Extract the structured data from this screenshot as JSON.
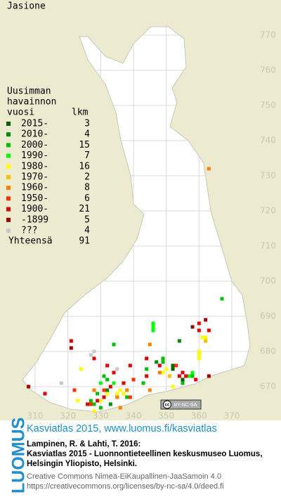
{
  "title": "Jasione",
  "legend": {
    "heading": [
      "Uusimman",
      "havainnon",
      "vuosi"
    ],
    "count_heading": "lkm",
    "items": [
      {
        "label": "2015-",
        "count": 3,
        "color": "#006400",
        "cells": [
          [
            352,
            676
          ],
          [
            352,
            675
          ],
          [
            355,
            672
          ]
        ]
      },
      {
        "label": "2010-",
        "count": 4,
        "color": "#008c00",
        "cells": [
          [
            354,
            683
          ],
          [
            347,
            677
          ],
          [
            332,
            669
          ],
          [
            333,
            665
          ]
        ]
      },
      {
        "label": "2000-",
        "count": 15,
        "color": "#00c000",
        "cells": [
          [
            367,
            695
          ],
          [
            334,
            682
          ],
          [
            349,
            678
          ],
          [
            349,
            677
          ],
          [
            344,
            675
          ],
          [
            331,
            673
          ],
          [
            332,
            672
          ],
          [
            358,
            673
          ],
          [
            328,
            665
          ],
          [
            338,
            667
          ],
          [
            329,
            668
          ],
          [
            330,
            664
          ],
          [
            343,
            671
          ],
          [
            355,
            671
          ],
          [
            327,
            666
          ]
        ]
      },
      {
        "label": "1990-",
        "count": 7,
        "color": "#00ff00",
        "cells": [
          [
            346,
            688
          ],
          [
            346,
            687
          ],
          [
            346,
            686
          ],
          [
            358,
            674
          ],
          [
            357,
            673
          ],
          [
            330,
            671
          ],
          [
            334,
            671
          ]
        ]
      },
      {
        "label": "1980-",
        "count": 16,
        "color": "#ffff00",
        "cells": [
          [
            361,
            684
          ],
          [
            362,
            684
          ],
          [
            360,
            680
          ],
          [
            360,
            679
          ],
          [
            360,
            678
          ],
          [
            324,
            675
          ],
          [
            350,
            675
          ],
          [
            352,
            670
          ],
          [
            337,
            668
          ],
          [
            336,
            669
          ],
          [
            335,
            668
          ],
          [
            330,
            666
          ],
          [
            332,
            668
          ],
          [
            328,
            663
          ],
          [
            349,
            674
          ],
          [
            323,
            666
          ]
        ]
      },
      {
        "label": "1970-",
        "count": 2,
        "color": "#ffc000",
        "cells": [
          [
            351,
            673
          ],
          [
            362,
            683
          ]
        ]
      },
      {
        "label": "1960-",
        "count": 8,
        "color": "#ff8000",
        "cells": [
          [
            363,
            732
          ],
          [
            345,
            682
          ],
          [
            345,
            669
          ],
          [
            335,
            667
          ],
          [
            338,
            669
          ],
          [
            328,
            669
          ],
          [
            348,
            674
          ],
          [
            336,
            664
          ]
        ]
      },
      {
        "label": "1950-",
        "count": 6,
        "color": "#ff3000",
        "cells": [
          [
            331,
            669
          ],
          [
            327,
            665
          ],
          [
            353,
            676
          ],
          [
            339,
            667
          ],
          [
            340,
            672
          ],
          [
            322,
            669
          ]
        ]
      },
      {
        "label": "1900-",
        "count": 21,
        "color": "#e00000",
        "cells": [
          [
            360,
            688
          ],
          [
            360,
            686
          ],
          [
            363,
            686
          ],
          [
            321,
            683
          ],
          [
            328,
            678
          ],
          [
            332,
            676
          ],
          [
            354,
            673
          ],
          [
            355,
            674
          ],
          [
            356,
            673
          ],
          [
            359,
            672
          ],
          [
            334,
            674
          ],
          [
            344,
            678
          ],
          [
            348,
            676
          ],
          [
            326,
            665
          ],
          [
            329,
            666
          ],
          [
            331,
            667
          ],
          [
            333,
            670
          ],
          [
            337,
            671
          ],
          [
            344,
            673
          ],
          [
            339,
            676
          ],
          [
            313,
            668
          ]
        ]
      },
      {
        "label": "-1899",
        "count": 5,
        "color": "#a00000",
        "cells": [
          [
            362,
            689
          ],
          [
            358,
            687
          ],
          [
            321,
            681
          ],
          [
            308,
            670
          ],
          [
            363,
            673
          ]
        ]
      },
      {
        "label": "???",
        "count": 4,
        "color": "#c8c8c8",
        "cells": [
          [
            328,
            680
          ],
          [
            327,
            679
          ],
          [
            318,
            671
          ],
          [
            335,
            675
          ]
        ]
      }
    ],
    "total_label": "Yhteensä",
    "total": 91
  },
  "xticks": [
    310,
    320,
    330,
    340,
    350,
    360,
    370
  ],
  "yticks": [
    670,
    680,
    690,
    700,
    710,
    720,
    730,
    740,
    750,
    760,
    770
  ],
  "license": {
    "logo": "cc",
    "terms": "BY-NC-SA"
  },
  "footer": {
    "brand": "LUOMUS",
    "headline": "Kasviatlas 2015, www.luomus.fi/kasviatlas",
    "citation": [
      "Lampinen, R. & Lahti, T. 2016:",
      "Kasviatlas 2015 - Luonnontieteellinen keskusmuseo Luomus,",
      "Helsingin Yliopisto, Helsinki."
    ],
    "licence_text": [
      "Creative Commons Nimeä-EiKaupallinen-JaaSamoin 4.0",
      "https://creativecommons.org/licenses/by-nc-sa/4.0/deed.fi"
    ]
  }
}
